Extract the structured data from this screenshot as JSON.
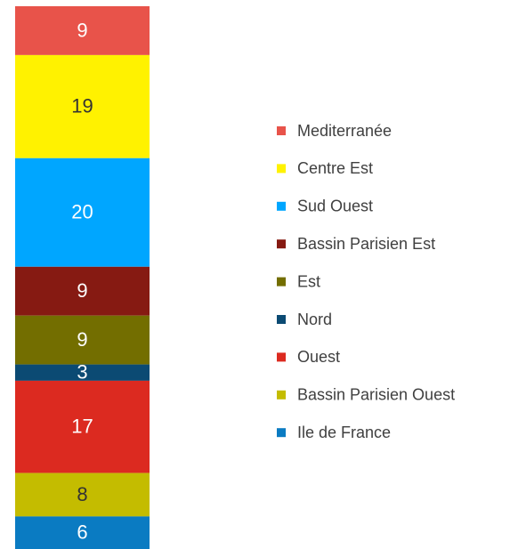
{
  "chart_data": {
    "type": "stacked_bar",
    "stacked": true,
    "series": [
      {
        "name": "Mediterranée",
        "color": "#e8534a",
        "values": [
          9
        ]
      },
      {
        "name": "Centre Est",
        "color": "#fff200",
        "values": [
          19
        ]
      },
      {
        "name": "Sud Ouest",
        "color": "#00a6ff",
        "values": [
          20
        ]
      },
      {
        "name": "Bassin Parisien Est",
        "color": "#861a12",
        "values": [
          9
        ]
      },
      {
        "name": "Est",
        "color": "#736e00",
        "values": [
          9
        ]
      },
      {
        "name": "Nord",
        "color": "#0b4a73",
        "values": [
          3
        ]
      },
      {
        "name": "Ouest",
        "color": "#dc2a20",
        "values": [
          17
        ]
      },
      {
        "name": "Bassin Parisien Ouest",
        "color": "#c4bc00",
        "values": [
          8
        ]
      },
      {
        "name": "Ile de France",
        "color": "#0a7bc2",
        "values": [
          6
        ]
      }
    ],
    "legend": "right"
  }
}
